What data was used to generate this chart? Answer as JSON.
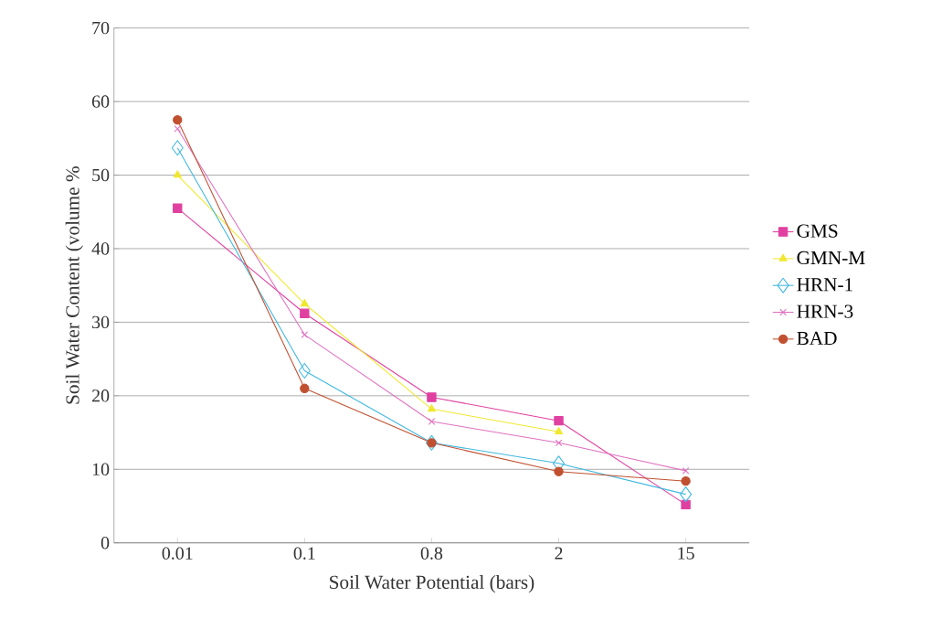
{
  "chart_data": {
    "type": "line",
    "xlabel": "Soil Water Potential (bars)",
    "ylabel": "Soil Water Content (volume %",
    "categories": [
      "0.01",
      "0.1",
      "0.8",
      "2",
      "15"
    ],
    "ylim": [
      0,
      70
    ],
    "yticks": [
      0,
      10,
      20,
      30,
      40,
      50,
      60,
      70
    ],
    "grid": "y",
    "legend": "right",
    "line_style": "solid",
    "series": [
      {
        "name": "GMS",
        "color": "#e040a0",
        "marker": "square",
        "values": [
          45.5,
          31.2,
          19.8,
          16.6,
          5.2
        ]
      },
      {
        "name": "GMN-M",
        "color": "#f0e830",
        "marker": "triangle",
        "values": [
          50,
          32.5,
          18.2,
          15.1,
          null
        ]
      },
      {
        "name": "HRN-1",
        "color": "#40b8e0",
        "marker": "diamond",
        "values": [
          53.7,
          23.4,
          13.6,
          10.8,
          6.6
        ]
      },
      {
        "name": "HRN-3",
        "color": "#e070c0",
        "marker": "cross",
        "values": [
          56.3,
          28.3,
          16.5,
          13.6,
          9.8
        ]
      },
      {
        "name": "BAD",
        "color": "#c05030",
        "marker": "circle",
        "values": [
          57.5,
          21.0,
          13.6,
          9.7,
          8.4
        ]
      }
    ]
  }
}
